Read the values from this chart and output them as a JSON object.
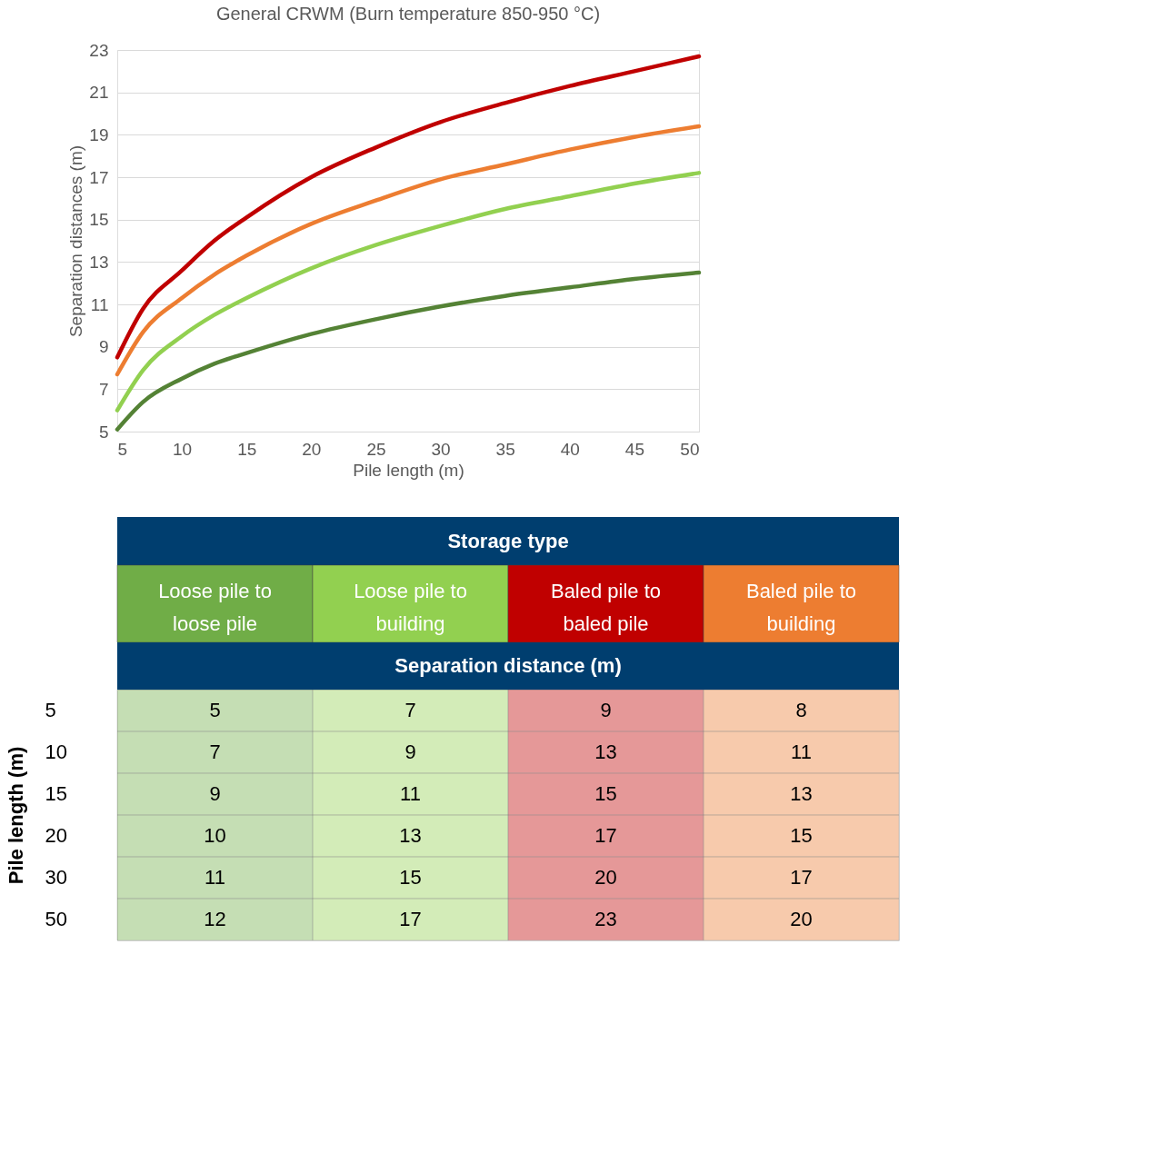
{
  "chart_data": [
    {
      "type": "line",
      "title": "General CRWM (Burn temperature 850-950 °C)",
      "xlabel": "Pile length (m)",
      "ylabel": "Separation distances (m)",
      "xlim": [
        5,
        50
      ],
      "xticks": [
        5,
        10,
        15,
        20,
        25,
        30,
        35,
        40,
        45,
        50
      ],
      "ylim": [
        5,
        23
      ],
      "yticks": [
        5,
        7,
        9,
        11,
        13,
        15,
        17,
        19,
        21,
        23
      ],
      "grid": "y",
      "legend": false,
      "marker": "none",
      "line_style": "solid",
      "x": [
        5,
        7,
        10,
        12.5,
        15,
        20,
        25,
        30,
        35,
        40,
        45,
        50
      ],
      "series": [
        {
          "color": "#c00000",
          "values": [
            8.5,
            10.8,
            12.6,
            14.0,
            15.1,
            17.0,
            18.4,
            19.6,
            20.5,
            21.3,
            22.0,
            22.7
          ]
        },
        {
          "color": "#ed7d31",
          "values": [
            7.7,
            9.7,
            11.3,
            12.4,
            13.3,
            14.8,
            15.9,
            16.9,
            17.6,
            18.3,
            18.9,
            19.4
          ]
        },
        {
          "color": "#92d050",
          "values": [
            6.0,
            7.9,
            9.5,
            10.5,
            11.3,
            12.7,
            13.8,
            14.7,
            15.5,
            16.1,
            16.7,
            17.2
          ]
        },
        {
          "color": "#548235",
          "values": [
            5.1,
            6.4,
            7.5,
            8.2,
            8.7,
            9.6,
            10.3,
            10.9,
            11.4,
            11.8,
            12.2,
            12.5
          ]
        }
      ]
    },
    {
      "type": "heatmap",
      "title": "Storage type",
      "xlabel": "Separation distance (m)",
      "ylabel": "Pile length (m)",
      "categories": [
        "Loose pile to loose pile",
        "Loose pile to building",
        "Baled pile to baled pile",
        "Baled pile to building"
      ],
      "colors": [
        "#70ad47",
        "#92d050",
        "#c00000",
        "#ed7d31"
      ],
      "y_categories": [
        "5",
        "10",
        "15",
        "20",
        "30",
        "50"
      ],
      "cells": [
        [
          5,
          7,
          9,
          8
        ],
        [
          7,
          9,
          13,
          11
        ],
        [
          9,
          11,
          15,
          13
        ],
        [
          10,
          13,
          17,
          15
        ],
        [
          11,
          15,
          20,
          17
        ],
        [
          12,
          17,
          23,
          20
        ]
      ],
      "data_labels": true
    }
  ]
}
